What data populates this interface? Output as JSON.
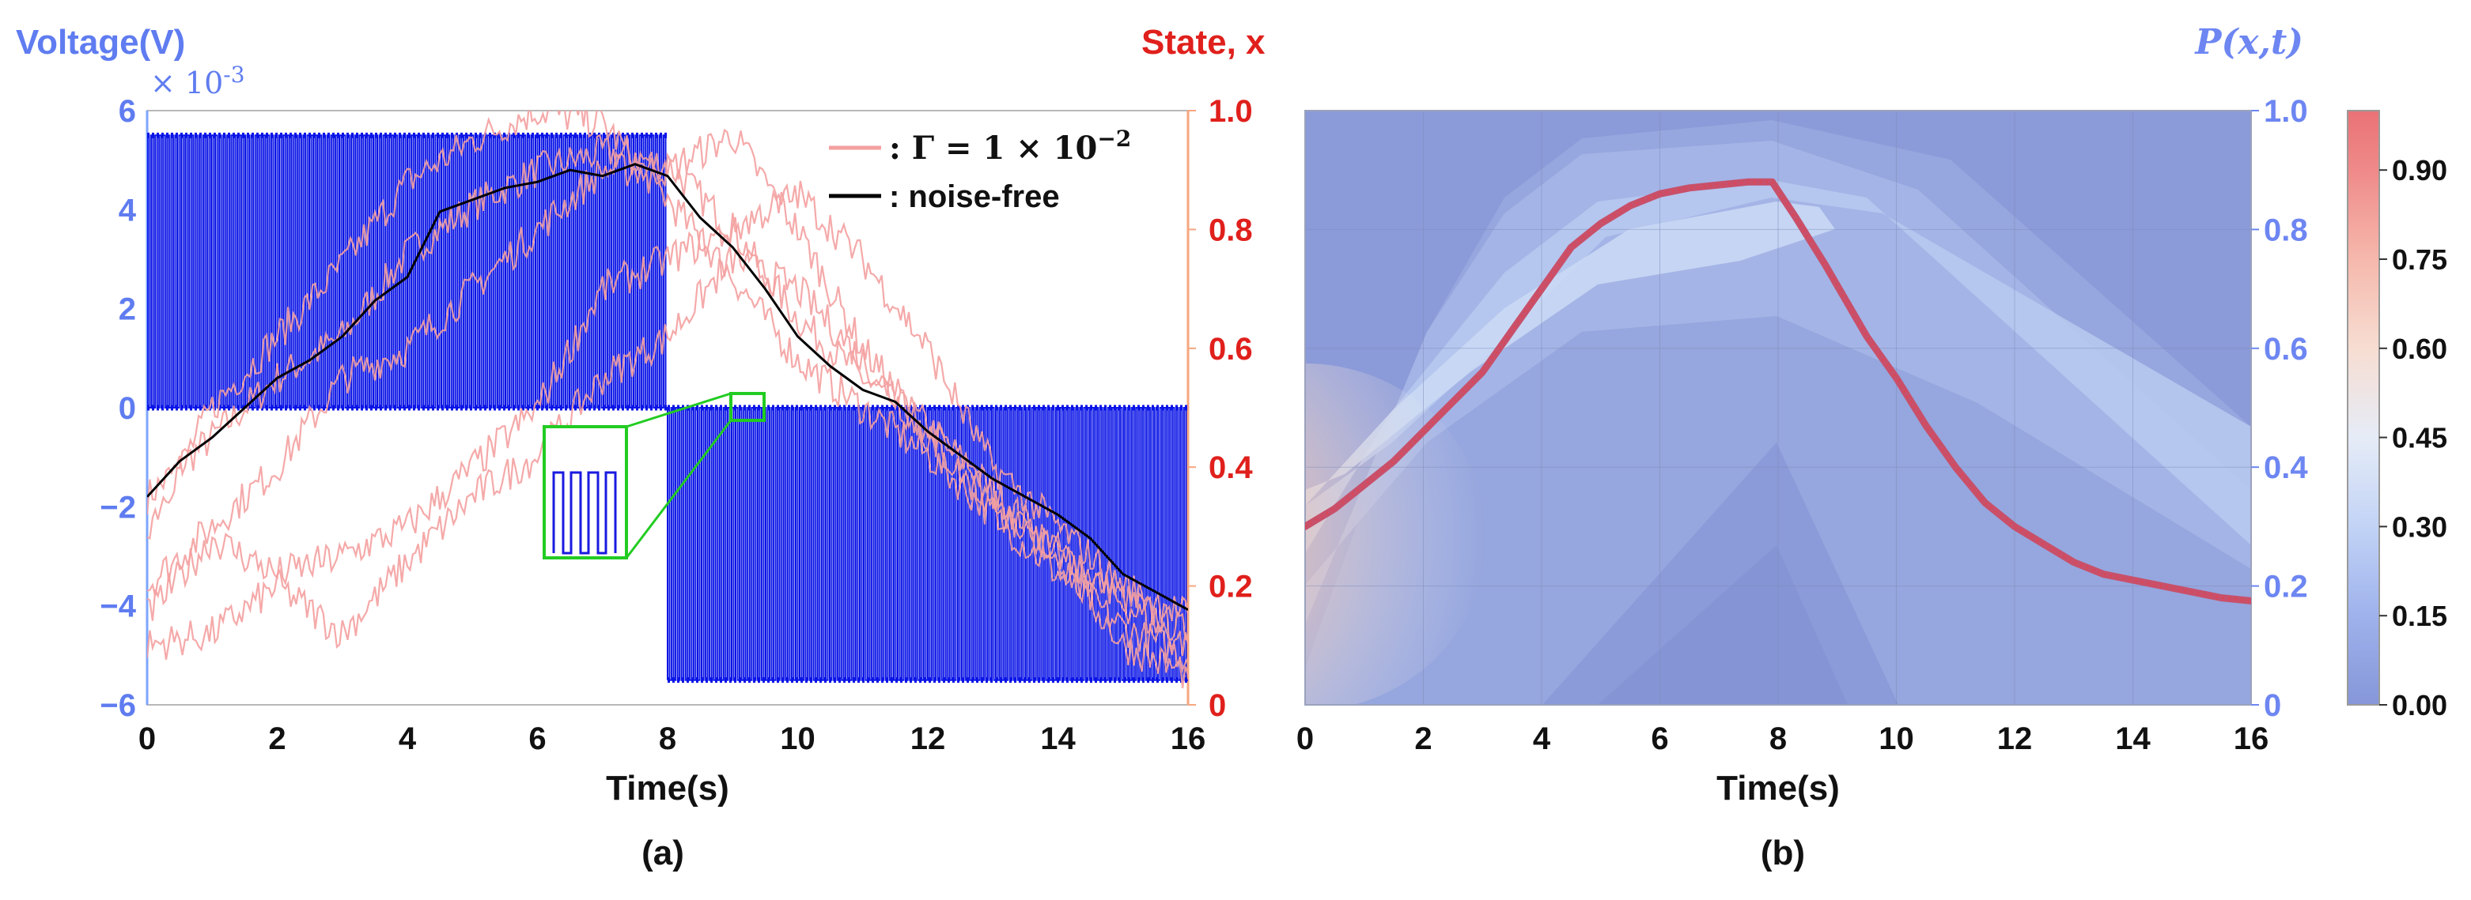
{
  "chart_data": [
    {
      "panel": "(a)",
      "type": "line",
      "xlabel": "Time(s)",
      "x_ticks": [
        "0",
        "2",
        "4",
        "6",
        "8",
        "10",
        "12",
        "14",
        "16"
      ],
      "xlim": [
        0,
        16
      ],
      "y_left": {
        "label": "Voltage(V)",
        "multiplier": "× 10",
        "multiplier_exp": "-3",
        "ticks": [
          "6",
          "4",
          "2",
          "0",
          "−2",
          "−4",
          "−6"
        ],
        "ylim": [
          -6,
          6
        ]
      },
      "y_right": {
        "label": "State, x",
        "ticks": [
          "1.0",
          "0.8",
          "0.6",
          "0.4",
          "0.2",
          "0"
        ],
        "ylim": [
          0,
          1
        ]
      },
      "legend": [
        {
          "label_prefix": ": Γ = 1 × 10",
          "label_exp": "−2",
          "color": "#f4a0a0"
        },
        {
          "label": ": noise-free",
          "color": "#000000"
        }
      ],
      "legend_position": "top-right",
      "voltage_pulses": {
        "phase1": {
          "t_start": 0,
          "t_end": 8,
          "high": 5.5,
          "low": 0
        },
        "phase2": {
          "t_start": 8,
          "t_end": 16,
          "high": 0,
          "low": -5.5
        },
        "color": "#0a14e6"
      },
      "series": [
        {
          "name": "noise-free",
          "color": "#000000",
          "x": [
            0,
            0.5,
            1,
            1.5,
            2,
            2.5,
            3,
            3.5,
            4,
            4.5,
            5,
            5.5,
            6,
            6.5,
            7,
            7.5,
            8,
            8.5,
            9,
            9.5,
            10,
            10.5,
            11,
            11.5,
            12,
            12.5,
            13,
            13.5,
            14,
            14.5,
            15,
            15.5,
            16
          ],
          "y": [
            0.35,
            0.41,
            0.45,
            0.5,
            0.55,
            0.58,
            0.62,
            0.68,
            0.72,
            0.83,
            0.85,
            0.87,
            0.88,
            0.9,
            0.89,
            0.91,
            0.89,
            0.82,
            0.77,
            0.7,
            0.62,
            0.57,
            0.53,
            0.51,
            0.46,
            0.42,
            0.38,
            0.35,
            0.32,
            0.28,
            0.22,
            0.19,
            0.16
          ]
        },
        {
          "name": "Γ = 1 × 10^-2",
          "color": "#f4a0a0",
          "note": "stochastic realisations",
          "x": [
            0,
            1,
            2,
            3,
            4,
            5,
            6,
            7,
            8,
            9,
            10,
            11,
            12,
            13,
            14,
            15,
            16
          ],
          "trajectories": [
            [
              0.35,
              0.45,
              0.55,
              0.62,
              0.76,
              0.84,
              0.9,
              0.93,
              0.91,
              0.8,
              0.65,
              0.55,
              0.47,
              0.36,
              0.26,
              0.18,
              0.12
            ],
            [
              0.3,
              0.5,
              0.62,
              0.74,
              0.88,
              0.95,
              1.0,
              0.98,
              0.85,
              0.72,
              0.58,
              0.5,
              0.42,
              0.32,
              0.22,
              0.13,
              0.08
            ],
            [
              0.2,
              0.3,
              0.4,
              0.55,
              0.6,
              0.7,
              0.8,
              0.9,
              0.9,
              0.96,
              0.8,
              0.6,
              0.46,
              0.35,
              0.25,
              0.17,
              0.1
            ],
            [
              0.1,
              0.12,
              0.2,
              0.12,
              0.24,
              0.35,
              0.42,
              0.55,
              0.62,
              0.75,
              0.7,
              0.58,
              0.45,
              0.33,
              0.25,
              0.1,
              0.05
            ],
            [
              0.15,
              0.28,
              0.22,
              0.25,
              0.3,
              0.4,
              0.5,
              0.7,
              0.75,
              0.8,
              0.86,
              0.75,
              0.6,
              0.4,
              0.3,
              0.2,
              0.15
            ]
          ]
        }
      ]
    },
    {
      "panel": "(b)",
      "type": "heatmap",
      "xlabel": "Time(s)",
      "x_ticks": [
        "0",
        "2",
        "4",
        "6",
        "8",
        "10",
        "12",
        "14",
        "16"
      ],
      "xlim": [
        0,
        16
      ],
      "y_right": {
        "label": "P(x,t)",
        "ticks": [
          "1.0",
          "0.8",
          "0.6",
          "0.4",
          "0.2",
          "0"
        ],
        "ylim": [
          0,
          1
        ]
      },
      "colorbar": {
        "ticks": [
          "0.90",
          "0.75",
          "0.60",
          "0.45",
          "0.30",
          "0.15",
          "0.00"
        ],
        "range": [
          0,
          1
        ]
      },
      "mean_curve": {
        "color": "#c8506a",
        "x": [
          0,
          0.5,
          1,
          1.5,
          2,
          2.5,
          3,
          3.5,
          4,
          4.5,
          5,
          5.5,
          6,
          6.5,
          7,
          7.5,
          7.9,
          8.3,
          8.8,
          9.5,
          10,
          10.5,
          11,
          11.5,
          12,
          12.5,
          13,
          13.5,
          14,
          14.5,
          15,
          15.5,
          16
        ],
        "y": [
          0.3,
          0.33,
          0.37,
          0.41,
          0.46,
          0.51,
          0.56,
          0.63,
          0.7,
          0.77,
          0.81,
          0.84,
          0.86,
          0.87,
          0.875,
          0.88,
          0.88,
          0.82,
          0.74,
          0.62,
          0.55,
          0.47,
          0.4,
          0.34,
          0.3,
          0.27,
          0.24,
          0.22,
          0.21,
          0.2,
          0.19,
          0.18,
          0.175
        ]
      }
    }
  ],
  "captions": {
    "a": "(a)",
    "b": "(b)"
  }
}
